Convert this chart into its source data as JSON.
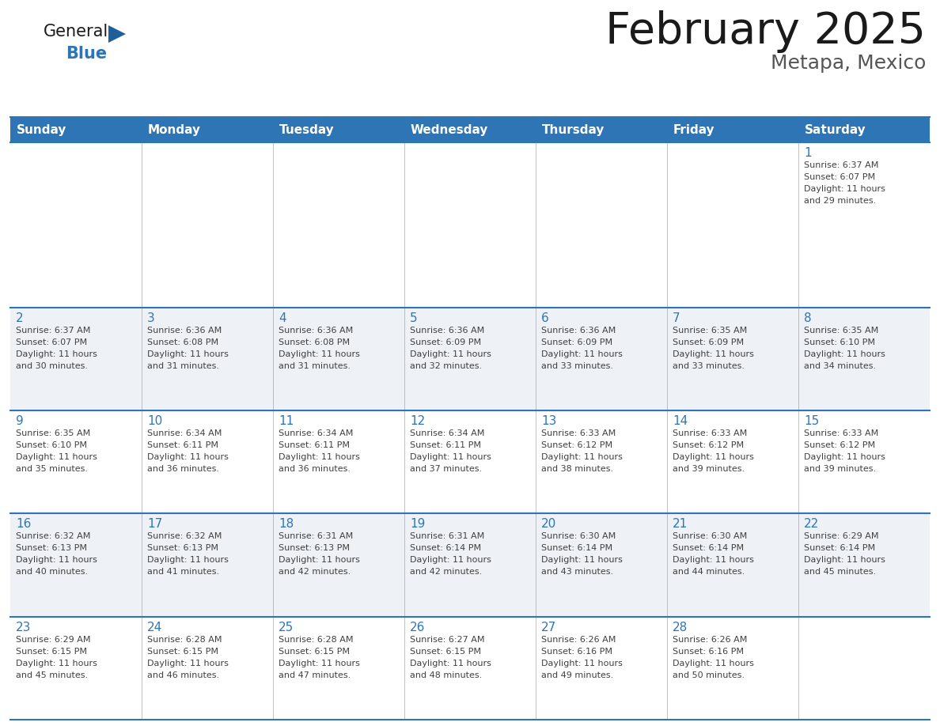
{
  "title": "February 2025",
  "subtitle": "Metapa, Mexico",
  "days_of_week": [
    "Sunday",
    "Monday",
    "Tuesday",
    "Wednesday",
    "Thursday",
    "Friday",
    "Saturday"
  ],
  "header_bg": "#2E75B6",
  "header_text": "#FFFFFF",
  "border_color": "#2E75B6",
  "title_color": "#1A1A1A",
  "subtitle_color": "#555555",
  "day_number_color": "#2E75B6",
  "cell_text_color": "#404040",
  "row_bg_odd": "#FFFFFF",
  "row_bg_even": "#EEF2F7",
  "calendar_data": [
    [
      null,
      null,
      null,
      null,
      null,
      null,
      1
    ],
    [
      2,
      3,
      4,
      5,
      6,
      7,
      8
    ],
    [
      9,
      10,
      11,
      12,
      13,
      14,
      15
    ],
    [
      16,
      17,
      18,
      19,
      20,
      21,
      22
    ],
    [
      23,
      24,
      25,
      26,
      27,
      28,
      null
    ]
  ],
  "sun_times": {
    "1": {
      "rise": "6:37 AM",
      "set": "6:07 PM",
      "hours": 11,
      "mins": 29
    },
    "2": {
      "rise": "6:37 AM",
      "set": "6:07 PM",
      "hours": 11,
      "mins": 30
    },
    "3": {
      "rise": "6:36 AM",
      "set": "6:08 PM",
      "hours": 11,
      "mins": 31
    },
    "4": {
      "rise": "6:36 AM",
      "set": "6:08 PM",
      "hours": 11,
      "mins": 31
    },
    "5": {
      "rise": "6:36 AM",
      "set": "6:09 PM",
      "hours": 11,
      "mins": 32
    },
    "6": {
      "rise": "6:36 AM",
      "set": "6:09 PM",
      "hours": 11,
      "mins": 33
    },
    "7": {
      "rise": "6:35 AM",
      "set": "6:09 PM",
      "hours": 11,
      "mins": 33
    },
    "8": {
      "rise": "6:35 AM",
      "set": "6:10 PM",
      "hours": 11,
      "mins": 34
    },
    "9": {
      "rise": "6:35 AM",
      "set": "6:10 PM",
      "hours": 11,
      "mins": 35
    },
    "10": {
      "rise": "6:34 AM",
      "set": "6:11 PM",
      "hours": 11,
      "mins": 36
    },
    "11": {
      "rise": "6:34 AM",
      "set": "6:11 PM",
      "hours": 11,
      "mins": 36
    },
    "12": {
      "rise": "6:34 AM",
      "set": "6:11 PM",
      "hours": 11,
      "mins": 37
    },
    "13": {
      "rise": "6:33 AM",
      "set": "6:12 PM",
      "hours": 11,
      "mins": 38
    },
    "14": {
      "rise": "6:33 AM",
      "set": "6:12 PM",
      "hours": 11,
      "mins": 39
    },
    "15": {
      "rise": "6:33 AM",
      "set": "6:12 PM",
      "hours": 11,
      "mins": 39
    },
    "16": {
      "rise": "6:32 AM",
      "set": "6:13 PM",
      "hours": 11,
      "mins": 40
    },
    "17": {
      "rise": "6:32 AM",
      "set": "6:13 PM",
      "hours": 11,
      "mins": 41
    },
    "18": {
      "rise": "6:31 AM",
      "set": "6:13 PM",
      "hours": 11,
      "mins": 42
    },
    "19": {
      "rise": "6:31 AM",
      "set": "6:14 PM",
      "hours": 11,
      "mins": 42
    },
    "20": {
      "rise": "6:30 AM",
      "set": "6:14 PM",
      "hours": 11,
      "mins": 43
    },
    "21": {
      "rise": "6:30 AM",
      "set": "6:14 PM",
      "hours": 11,
      "mins": 44
    },
    "22": {
      "rise": "6:29 AM",
      "set": "6:14 PM",
      "hours": 11,
      "mins": 45
    },
    "23": {
      "rise": "6:29 AM",
      "set": "6:15 PM",
      "hours": 11,
      "mins": 45
    },
    "24": {
      "rise": "6:28 AM",
      "set": "6:15 PM",
      "hours": 11,
      "mins": 46
    },
    "25": {
      "rise": "6:28 AM",
      "set": "6:15 PM",
      "hours": 11,
      "mins": 47
    },
    "26": {
      "rise": "6:27 AM",
      "set": "6:15 PM",
      "hours": 11,
      "mins": 48
    },
    "27": {
      "rise": "6:26 AM",
      "set": "6:16 PM",
      "hours": 11,
      "mins": 49
    },
    "28": {
      "rise": "6:26 AM",
      "set": "6:16 PM",
      "hours": 11,
      "mins": 50
    }
  },
  "logo_general_color": "#1A1A1A",
  "logo_blue_color": "#2E75B6",
  "logo_triangle_color": "#2E75B6"
}
